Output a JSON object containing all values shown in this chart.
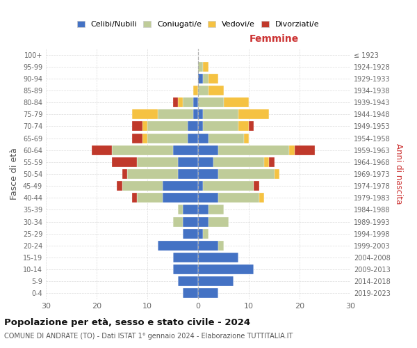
{
  "age_groups": [
    "0-4",
    "5-9",
    "10-14",
    "15-19",
    "20-24",
    "25-29",
    "30-34",
    "35-39",
    "40-44",
    "45-49",
    "50-54",
    "55-59",
    "60-64",
    "65-69",
    "70-74",
    "75-79",
    "80-84",
    "85-89",
    "90-94",
    "95-99",
    "100+"
  ],
  "birth_years": [
    "2019-2023",
    "2014-2018",
    "2009-2013",
    "2004-2008",
    "1999-2003",
    "1994-1998",
    "1989-1993",
    "1984-1988",
    "1979-1983",
    "1974-1978",
    "1969-1973",
    "1964-1968",
    "1959-1963",
    "1954-1958",
    "1949-1953",
    "1944-1948",
    "1939-1943",
    "1934-1938",
    "1929-1933",
    "1924-1928",
    "≤ 1923"
  ],
  "males": {
    "celibe": [
      3,
      4,
      5,
      5,
      8,
      3,
      3,
      3,
      7,
      7,
      4,
      4,
      5,
      2,
      2,
      1,
      1,
      0,
      0,
      0,
      0
    ],
    "coniugato": [
      0,
      0,
      0,
      0,
      0,
      0,
      2,
      1,
      5,
      8,
      10,
      8,
      12,
      8,
      8,
      7,
      2,
      0,
      0,
      0,
      0
    ],
    "vedovo": [
      0,
      0,
      0,
      0,
      0,
      0,
      0,
      0,
      0,
      0,
      0,
      0,
      0,
      1,
      1,
      5,
      1,
      1,
      0,
      0,
      0
    ],
    "divorziato": [
      0,
      0,
      0,
      0,
      0,
      0,
      0,
      0,
      1,
      1,
      1,
      5,
      4,
      2,
      2,
      0,
      1,
      0,
      0,
      0,
      0
    ]
  },
  "females": {
    "nubile": [
      4,
      7,
      11,
      8,
      4,
      1,
      2,
      2,
      4,
      1,
      4,
      3,
      4,
      2,
      1,
      1,
      0,
      0,
      1,
      0,
      0
    ],
    "coniugata": [
      0,
      0,
      0,
      0,
      1,
      1,
      4,
      3,
      8,
      10,
      11,
      10,
      14,
      7,
      7,
      7,
      5,
      2,
      1,
      1,
      0
    ],
    "vedova": [
      0,
      0,
      0,
      0,
      0,
      0,
      0,
      0,
      1,
      0,
      1,
      1,
      1,
      1,
      2,
      6,
      5,
      3,
      2,
      1,
      0
    ],
    "divorziata": [
      0,
      0,
      0,
      0,
      0,
      0,
      0,
      0,
      0,
      1,
      0,
      1,
      4,
      0,
      1,
      0,
      0,
      0,
      0,
      0,
      0
    ]
  },
  "colors": {
    "celibe": "#4472C4",
    "coniugato": "#BFCC99",
    "vedovo": "#F5C242",
    "divorziato": "#C0392B"
  },
  "xlim": 30,
  "title": "Popolazione per età, sesso e stato civile - 2024",
  "subtitle": "COMUNE DI ANDRATE (TO) - Dati ISTAT 1° gennaio 2024 - Elaborazione TUTTITALIA.IT",
  "ylabel_left": "Fasce di età",
  "ylabel_right": "Anni di nascita",
  "xlabel_right": "Femmine",
  "bg_color": "#FFFFFF",
  "grid_color": "#CCCCCC",
  "legend_labels": [
    "Celibi/Nubili",
    "Coniugati/e",
    "Vedovi/e",
    "Divorziati/e"
  ]
}
